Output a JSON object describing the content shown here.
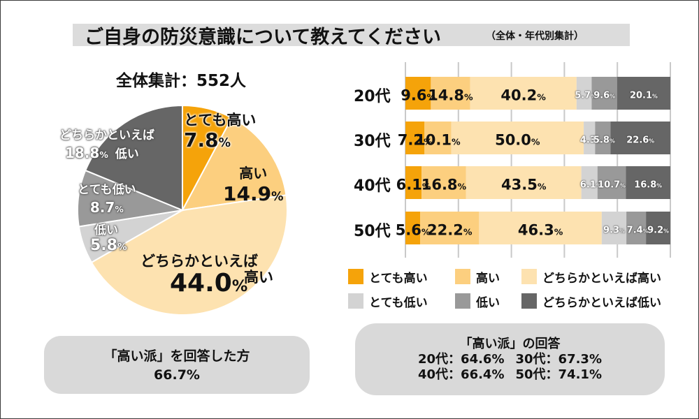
{
  "header": {
    "title": "ご自身の防災意識について教えてください",
    "subtitle": "（全体・年代別集計）"
  },
  "colors": {
    "very_high": "#f5a30a",
    "high": "#fccf7f",
    "somewhat_high": "#fde2b0",
    "very_low": "#d3d3d3",
    "low": "#999999",
    "somewhat_low": "#666666"
  },
  "chart_data": [
    {
      "type": "pie",
      "title": "全体集計：552人",
      "slices": [
        {
          "label": "とても高い",
          "value": 7.8,
          "display": "7.8"
        },
        {
          "label": "高い",
          "value": 14.9,
          "display": "14.9"
        },
        {
          "label": "どちらかといえば高い",
          "value": 44.0,
          "display": "44.0"
        },
        {
          "label": "低い",
          "value": 5.8,
          "display": "5.8"
        },
        {
          "label": "とても低い",
          "value": 8.7,
          "display": "8.7"
        },
        {
          "label": "どちらかといえば低い",
          "value": 18.8,
          "display": "18.8"
        }
      ],
      "unit": "%",
      "start": "12 o'clock, clockwise"
    },
    {
      "type": "bar",
      "orientation": "horizontal-stacked",
      "categories": [
        "20代",
        "30代",
        "40代",
        "50代"
      ],
      "series": [
        {
          "name": "とても高い",
          "values": [
            9.6,
            7.2,
            6.1,
            5.6
          ],
          "display": [
            "9.6",
            "7.2",
            "6.1",
            "5.6"
          ]
        },
        {
          "name": "高い",
          "values": [
            14.8,
            10.1,
            16.8,
            22.2
          ],
          "display": [
            "14.8",
            "10.1",
            "16.8",
            "22.2"
          ]
        },
        {
          "name": "どちらかといえば高い",
          "values": [
            40.2,
            50.0,
            43.5,
            46.3
          ],
          "display": [
            "40.2",
            "50.0",
            "43.5",
            "46.3"
          ]
        },
        {
          "name": "とても低い",
          "values": [
            5.7,
            4.3,
            6.1,
            9.3
          ],
          "display": [
            "5.7",
            "4.3",
            "6.1",
            "9.3"
          ]
        },
        {
          "name": "低い",
          "values": [
            9.6,
            5.8,
            10.7,
            7.4
          ],
          "display": [
            "9.6",
            "5.8",
            "10.7",
            "7.4"
          ]
        },
        {
          "name": "どちらかといえば低い",
          "values": [
            20.1,
            22.6,
            16.8,
            9.2
          ],
          "display": [
            "20.1",
            "22.6",
            "16.8",
            "9.2"
          ]
        }
      ],
      "unit": "%",
      "xlim": [
        0,
        100
      ],
      "gridlines": [
        0,
        20,
        40,
        60,
        80,
        100
      ]
    }
  ],
  "pie_labels": {
    "very_high": {
      "name": "とても高い",
      "value": "7.8",
      "unit": "%"
    },
    "high": {
      "name": "高い",
      "value": "14.9",
      "unit": "%"
    },
    "somewhat_high": {
      "name_line1": "どちらかといえば",
      "name_line2": "高い",
      "value": "44.0",
      "unit": "%"
    },
    "low": {
      "name": "低い",
      "value": "5.8",
      "unit": "%"
    },
    "very_low": {
      "name": "とても低い",
      "value": "8.7",
      "unit": "%"
    },
    "somewhat_low": {
      "name": "どちらかといえば",
      "value": "18.8",
      "unit": "%",
      "suffix": "低い"
    }
  },
  "pie_summary": {
    "label": "「高い派」を回答した方",
    "value": "66.7%"
  },
  "legend": [
    {
      "name": "とても高い",
      "key": "very_high"
    },
    {
      "name": "高い",
      "key": "high"
    },
    {
      "name": "どちらかといえば高い",
      "key": "somewhat_high"
    },
    {
      "name": "とても低い",
      "key": "very_low"
    },
    {
      "name": "低い",
      "key": "low"
    },
    {
      "name": "どちらかといえば低い",
      "key": "somewhat_low"
    }
  ],
  "age_summary": {
    "label": "「高い派」の回答",
    "row1": [
      "20代：64.6%",
      "30代：67.3%"
    ],
    "row2": [
      "40代：66.4%",
      "50代：74.1%"
    ]
  }
}
